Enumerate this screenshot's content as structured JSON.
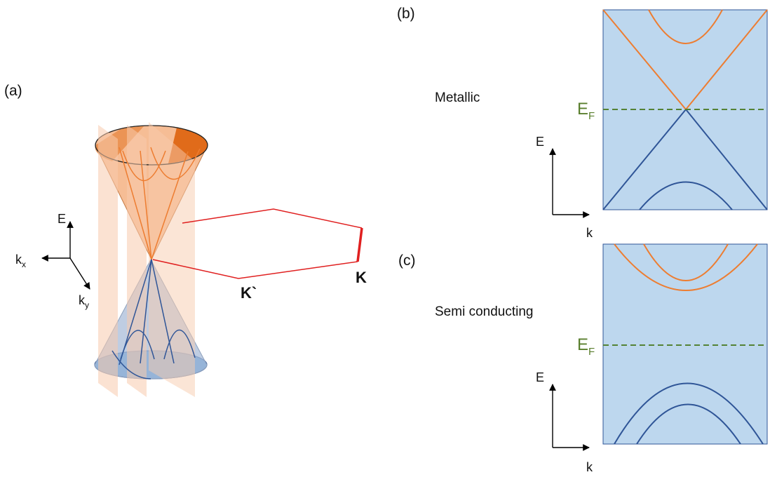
{
  "panels": {
    "a": {
      "label": "(a)"
    },
    "b": {
      "label": "(b)",
      "side_label": "Metallic"
    },
    "c": {
      "label": "(c)",
      "side_label": "Semi conducting"
    }
  },
  "axes3d": {
    "e_label": "E",
    "kx_main": "k",
    "kx_sub": "x",
    "ky_main": "k",
    "ky_sub": "y"
  },
  "band_axes": {
    "e_label": "E",
    "k_label": "k"
  },
  "fermi": {
    "main": "E",
    "sub": "F"
  },
  "k_points": {
    "k_prime": "K`",
    "k": "K"
  },
  "colors": {
    "conduction_band": "#ed7d31",
    "valence_band": "#2f5597",
    "panel_fill": "#bdd7ee",
    "fermi_line": "#548235",
    "brillouin_zone": "#e02020",
    "cone_top": "#f4b183",
    "cone_bottom": "#a9bcd8",
    "cut_plane": "#f8cbad"
  }
}
